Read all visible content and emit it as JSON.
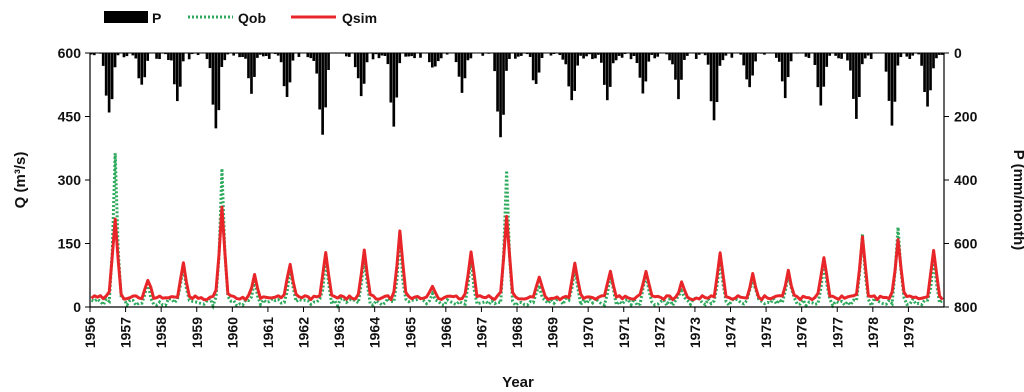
{
  "chart_data": {
    "type": "line",
    "xlabel": "Year",
    "ylabel_left": "Q (m³/s)",
    "ylabel_right": "P (mm/month)",
    "x_range": [
      1956,
      1980
    ],
    "ylim_left": [
      0,
      600
    ],
    "ylim_right_inverted": [
      0,
      800
    ],
    "left_ticks": [
      "0",
      "150",
      "300",
      "450",
      "600"
    ],
    "right_ticks": [
      "0",
      "200",
      "400",
      "600",
      "800"
    ],
    "year_ticks": [
      "1956",
      "1957",
      "1958",
      "1959",
      "1960",
      "1961",
      "1962",
      "1963",
      "1964",
      "1965",
      "1966",
      "1967",
      "1968",
      "1969",
      "1970",
      "1971",
      "1972",
      "1973",
      "1974",
      "1975",
      "1976",
      "1977",
      "1978",
      "1979"
    ],
    "legend_position": "top-left",
    "colors": {
      "P": "#000000",
      "Qob": "#2eaa5c",
      "Qsim": "#e8262a"
    },
    "series": [
      {
        "name": "P",
        "style": "bar-inverted-right-axis",
        "annual_peak_month": [
          6,
          5,
          5,
          6,
          6,
          6,
          6,
          7,
          6,
          7,
          5,
          6,
          6,
          6,
          6,
          6,
          6,
          6,
          6,
          6,
          6,
          6,
          6,
          6
        ],
        "annual_peak_value": [
          200,
          110,
          150,
          250,
          130,
          140,
          250,
          140,
          220,
          60,
          130,
          280,
          110,
          160,
          140,
          120,
          140,
          220,
          120,
          130,
          170,
          220,
          220,
          180
        ]
      },
      {
        "name": "Qob",
        "style": "dotted",
        "annual_peak_month": [
          8,
          7,
          7,
          8,
          7,
          7,
          7,
          8,
          8,
          7,
          8,
          8,
          7,
          7,
          7,
          7,
          7,
          8,
          7,
          7,
          7,
          8,
          8,
          8
        ],
        "annual_peak_value": [
          365,
          55,
          100,
          330,
          65,
          90,
          110,
          120,
          170,
          40,
          120,
          320,
          60,
          95,
          70,
          75,
          40,
          120,
          70,
          80,
          115,
          165,
          195,
          120
        ]
      },
      {
        "name": "Qsim",
        "style": "solid",
        "annual_peak_month": [
          8,
          7,
          7,
          8,
          7,
          7,
          7,
          8,
          8,
          7,
          8,
          8,
          7,
          7,
          7,
          7,
          7,
          8,
          7,
          7,
          7,
          8,
          8,
          8
        ],
        "annual_peak_value": [
          210,
          65,
          105,
          235,
          75,
          105,
          125,
          130,
          175,
          50,
          130,
          215,
          70,
          100,
          80,
          85,
          55,
          130,
          75,
          85,
          120,
          165,
          160,
          130
        ]
      }
    ],
    "legend": [
      "P",
      "Qob",
      "Qsim"
    ]
  }
}
